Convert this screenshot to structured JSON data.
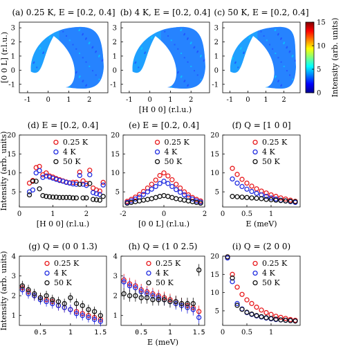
{
  "chart_data": [
    {
      "id": "a",
      "type": "heatmap",
      "title": "(a) 0.25 K, E = [0.2, 0.4]",
      "xlabel": "",
      "ylabel": "[0 0 L] (r.l.u.)",
      "xticks": [
        "-1",
        "0",
        "1",
        "2"
      ],
      "yticks": [
        "3",
        "2",
        "1",
        "0",
        "-1"
      ],
      "xlim": [
        -1.4,
        2.9
      ],
      "ylim": [
        -1.6,
        3.4
      ],
      "hot_level": 1.0
    },
    {
      "id": "b",
      "type": "heatmap",
      "title": "(b) 4 K, E = [0.2, 0.4]",
      "xlabel": "[H 0 0] (r.l.u.)",
      "ylabel": "",
      "xticks": [
        "-1",
        "0",
        "1",
        "2"
      ],
      "yticks": [
        "3",
        "2",
        "1",
        "0",
        "-1"
      ],
      "xlim": [
        -1.4,
        2.9
      ],
      "ylim": [
        -1.6,
        3.4
      ],
      "hot_level": 0.8
    },
    {
      "id": "c",
      "type": "heatmap",
      "title": "(c) 50 K, E = [0.2, 0.4]",
      "xlabel": "",
      "ylabel": "",
      "xticks": [
        "-1",
        "0",
        "1",
        "2"
      ],
      "yticks": [
        "3",
        "2",
        "1",
        "0",
        "-1"
      ],
      "xlim": [
        -1.4,
        2.9
      ],
      "ylim": [
        -1.6,
        3.4
      ],
      "hot_level": 0.35,
      "colorbar": {
        "label": "Intensity (arb. units)",
        "ticks": [
          "15",
          "10",
          "5",
          "0"
        ],
        "range": [
          0,
          15
        ]
      }
    },
    {
      "id": "d",
      "type": "scatter",
      "title": "(d) E = [0.2, 0.4]",
      "xlabel": "[H 0 0] (r.l.u.)",
      "ylabel": "Intensity (arb. units)",
      "xlim": [
        0,
        2.6
      ],
      "ylim": [
        1,
        20
      ],
      "xticks": [
        0,
        1,
        2
      ],
      "yticks": [
        5,
        10,
        15,
        20
      ],
      "xtick_labels": [
        "0",
        "1",
        "2"
      ],
      "ytick_labels": [
        "5",
        "10",
        "15",
        "20"
      ],
      "legend": [
        "0.25 K",
        "4 K",
        "50 K"
      ],
      "series": [
        {
          "name": "0.25 K",
          "color": "#e8191c",
          "x": [
            0.3,
            0.4,
            0.5,
            0.6,
            0.7,
            0.8,
            0.9,
            1.0,
            1.1,
            1.2,
            1.3,
            1.4,
            1.5,
            1.6,
            1.7,
            1.8,
            1.9,
            2.0,
            2.1,
            2.2,
            2.3,
            2.4,
            2.5
          ],
          "y": [
            7.3,
            8.0,
            11.4,
            11.7,
            9.5,
            10.0,
            9.2,
            8.9,
            8.5,
            8.2,
            7.9,
            7.6,
            7.4,
            7.5,
            7.5,
            10.2,
            7.9,
            7.2,
            10.7,
            6.0,
            5.5,
            5.2,
            7.5
          ]
        },
        {
          "name": "4 K",
          "color": "#1f2be0",
          "x": [
            0.3,
            0.4,
            0.5,
            0.6,
            0.7,
            0.8,
            0.9,
            1.0,
            1.1,
            1.2,
            1.3,
            1.4,
            1.5,
            1.6,
            1.7,
            1.8,
            1.9,
            2.0,
            2.1,
            2.2,
            2.3,
            2.4,
            2.5
          ],
          "y": [
            5.0,
            5.5,
            10.0,
            10.6,
            8.8,
            9.2,
            8.9,
            8.6,
            8.3,
            8.0,
            7.8,
            7.5,
            7.3,
            7.1,
            7.0,
            9.3,
            7.0,
            6.7,
            9.5,
            4.8,
            4.5,
            4.3,
            6.8
          ]
        },
        {
          "name": "50 K",
          "color": "#111111",
          "x": [
            0.3,
            0.4,
            0.5,
            0.6,
            0.7,
            0.8,
            0.9,
            1.0,
            1.1,
            1.2,
            1.3,
            1.4,
            1.5,
            1.6,
            1.7,
            1.8,
            1.9,
            2.0,
            2.1,
            2.2,
            2.3,
            2.4,
            2.5
          ],
          "y": [
            4.2,
            7.8,
            7.8,
            5.8,
            4.0,
            3.8,
            3.7,
            3.6,
            3.6,
            3.5,
            3.5,
            3.5,
            3.5,
            3.4,
            3.4,
            7.0,
            3.4,
            3.4,
            7.2,
            3.0,
            2.9,
            2.8,
            3.8
          ]
        }
      ]
    },
    {
      "id": "e",
      "type": "scatter",
      "title": "(e) E = [0.2, 0.4]",
      "xlabel": "[0 0 L] (r.l.u.)",
      "ylabel": "",
      "xlim": [
        -2,
        2
      ],
      "ylim": [
        1,
        20
      ],
      "xticks": [
        -2,
        0,
        2
      ],
      "yticks": [
        5,
        10,
        15,
        20
      ],
      "xtick_labels": [
        "-2",
        "0",
        "2"
      ],
      "ytick_labels": [
        "5",
        "10",
        "15",
        "20"
      ],
      "legend": [
        "0.25 K",
        "4 K",
        "50 K"
      ],
      "series": [
        {
          "name": "0.25 K",
          "color": "#e8191c",
          "x": [
            -1.8,
            -1.6,
            -1.4,
            -1.2,
            -1.0,
            -0.8,
            -0.6,
            -0.4,
            -0.2,
            0,
            0.2,
            0.4,
            0.6,
            0.8,
            1.0,
            1.2,
            1.4,
            1.6,
            1.8
          ],
          "y": [
            2.5,
            3.0,
            3.6,
            4.3,
            5.1,
            6.0,
            7.0,
            8.1,
            9.3,
            10.0,
            9.2,
            8.2,
            7.0,
            6.0,
            5.0,
            4.2,
            3.5,
            3.0,
            2.6
          ]
        },
        {
          "name": "4 K",
          "color": "#1f2be0",
          "x": [
            -1.8,
            -1.6,
            -1.4,
            -1.2,
            -1.0,
            -0.8,
            -0.6,
            -0.4,
            -0.2,
            0,
            0.2,
            0.4,
            0.6,
            0.8,
            1.0,
            1.2,
            1.4,
            1.6,
            1.8
          ],
          "y": [
            2.2,
            2.6,
            3.1,
            3.6,
            4.3,
            5.0,
            5.7,
            6.4,
            7.2,
            7.8,
            7.2,
            6.4,
            5.6,
            4.9,
            4.2,
            3.6,
            3.1,
            2.6,
            2.3
          ]
        },
        {
          "name": "50 K",
          "color": "#111111",
          "x": [
            -1.8,
            -1.6,
            -1.4,
            -1.2,
            -1.0,
            -0.8,
            -0.6,
            -0.4,
            -0.2,
            0,
            0.2,
            0.4,
            0.6,
            0.8,
            1.0,
            1.2,
            1.4,
            1.6,
            1.8
          ],
          "y": [
            2.0,
            2.2,
            2.4,
            2.6,
            2.8,
            3.0,
            3.2,
            3.5,
            3.8,
            4.0,
            3.8,
            3.5,
            3.2,
            3.0,
            2.8,
            2.6,
            2.4,
            2.2,
            2.0
          ]
        }
      ]
    },
    {
      "id": "f",
      "type": "scatter",
      "title": "(f) Q = [1 0 0]",
      "xlabel": "E (meV)",
      "ylabel": "",
      "xlim": [
        0,
        1.6
      ],
      "ylim": [
        1,
        20
      ],
      "xticks": [
        0,
        0.5,
        1
      ],
      "yticks": [
        5,
        10,
        15,
        20
      ],
      "xtick_labels": [
        "0",
        "0.5",
        "1"
      ],
      "ytick_labels": [
        "5",
        "10",
        "15",
        "20"
      ],
      "legend": [
        "0.25 K",
        "4 K",
        "50 K"
      ],
      "series": [
        {
          "name": "0.25 K",
          "color": "#e8191c",
          "x": [
            0.2,
            0.3,
            0.4,
            0.5,
            0.6,
            0.7,
            0.8,
            0.9,
            1.0,
            1.1,
            1.2,
            1.3,
            1.4,
            1.5
          ],
          "y": [
            11.2,
            9.6,
            8.3,
            7.3,
            6.5,
            5.8,
            5.2,
            4.7,
            4.2,
            3.8,
            3.4,
            3.1,
            2.8,
            2.5
          ]
        },
        {
          "name": "4 K",
          "color": "#1f2be0",
          "x": [
            0.2,
            0.3,
            0.4,
            0.5,
            0.6,
            0.7,
            0.8,
            0.9,
            1.0,
            1.1,
            1.2,
            1.3,
            1.4,
            1.5
          ],
          "y": [
            8.4,
            7.3,
            6.4,
            5.7,
            5.1,
            4.6,
            4.2,
            3.8,
            3.4,
            3.1,
            2.8,
            2.6,
            2.4,
            2.2
          ]
        },
        {
          "name": "50 K",
          "color": "#111111",
          "x": [
            0.2,
            0.3,
            0.4,
            0.5,
            0.6,
            0.7,
            0.8,
            0.9,
            1.0,
            1.1,
            1.2,
            1.3,
            1.4,
            1.5
          ],
          "y": [
            3.8,
            3.7,
            3.6,
            3.5,
            3.4,
            3.3,
            3.2,
            3.0,
            2.9,
            2.8,
            2.7,
            2.6,
            2.5,
            2.4
          ]
        }
      ]
    },
    {
      "id": "g",
      "type": "scatter",
      "title": "(g) Q = (0 0 1.3)",
      "xlabel": "",
      "ylabel": "Intensity (arb. units)",
      "xlim": [
        0.15,
        1.6
      ],
      "ylim": [
        0.5,
        4
      ],
      "xticks": [
        0.5,
        1,
        1.5
      ],
      "yticks": [
        1,
        2,
        3,
        4
      ],
      "xtick_labels": [
        "0.5",
        "1",
        "1.5"
      ],
      "ytick_labels": [
        "1",
        "2",
        "3",
        "4"
      ],
      "legend": [
        "0.25 K",
        "4 K",
        "50 K"
      ],
      "series": [
        {
          "name": "0.25 K",
          "color": "#e8191c",
          "x": [
            0.2,
            0.3,
            0.4,
            0.5,
            0.6,
            0.7,
            0.8,
            0.9,
            1.0,
            1.1,
            1.2,
            1.3,
            1.4,
            1.5
          ],
          "y": [
            2.4,
            2.2,
            2.0,
            1.9,
            1.8,
            1.7,
            1.5,
            1.4,
            1.3,
            1.2,
            1.1,
            1.0,
            0.9,
            0.8
          ]
        },
        {
          "name": "4 K",
          "color": "#1f2be0",
          "x": [
            0.2,
            0.3,
            0.4,
            0.5,
            0.6,
            0.7,
            0.8,
            0.9,
            1.0,
            1.1,
            1.2,
            1.3,
            1.4,
            1.5
          ],
          "y": [
            2.3,
            2.1,
            2.0,
            1.8,
            1.7,
            1.6,
            1.5,
            1.4,
            1.3,
            1.1,
            1.0,
            0.9,
            0.8,
            0.7
          ]
        },
        {
          "name": "50 K",
          "color": "#111111",
          "x": [
            0.2,
            0.3,
            0.4,
            0.5,
            0.6,
            0.7,
            0.8,
            0.9,
            1.0,
            1.1,
            1.2,
            1.3,
            1.4,
            1.5
          ],
          "y": [
            2.5,
            2.3,
            2.1,
            1.9,
            2.0,
            1.8,
            1.7,
            1.6,
            1.9,
            1.6,
            1.5,
            1.3,
            1.2,
            1.0
          ]
        }
      ]
    },
    {
      "id": "h",
      "type": "scatter",
      "title": "(h) Q = (1 0 2.5)",
      "xlabel": "E (meV)",
      "ylabel": "",
      "xlim": [
        0.15,
        1.6
      ],
      "ylim": [
        0.5,
        4
      ],
      "xticks": [
        0.5,
        1,
        1.5
      ],
      "yticks": [
        1,
        2,
        3,
        4
      ],
      "xtick_labels": [
        "0.5",
        "1",
        "1.5"
      ],
      "ytick_labels": [
        "1",
        "2",
        "3",
        "4"
      ],
      "legend": [
        "0.25 K",
        "4 K",
        "50 K"
      ],
      "series": [
        {
          "name": "0.25 K",
          "color": "#e8191c",
          "x": [
            0.2,
            0.3,
            0.4,
            0.5,
            0.6,
            0.7,
            0.8,
            0.9,
            1.0,
            1.1,
            1.2,
            1.3,
            1.4,
            1.5
          ],
          "y": [
            2.8,
            2.6,
            2.5,
            2.3,
            2.2,
            2.1,
            2.0,
            1.9,
            1.8,
            1.7,
            1.6,
            1.5,
            1.4,
            1.2
          ]
        },
        {
          "name": "4 K",
          "color": "#1f2be0",
          "x": [
            0.2,
            0.3,
            0.4,
            0.5,
            0.6,
            0.7,
            0.8,
            0.9,
            1.0,
            1.1,
            1.2,
            1.3,
            1.4,
            1.5
          ],
          "y": [
            2.7,
            2.5,
            2.4,
            2.2,
            2.1,
            2.0,
            1.9,
            1.8,
            1.7,
            1.6,
            1.5,
            1.4,
            1.3,
            0.9
          ]
        },
        {
          "name": "50 K",
          "color": "#111111",
          "x": [
            0.2,
            0.3,
            0.4,
            0.5,
            0.6,
            0.7,
            0.8,
            0.9,
            1.0,
            1.1,
            1.2,
            1.3,
            1.4,
            1.5
          ],
          "y": [
            2.1,
            2.0,
            2.0,
            1.9,
            1.9,
            1.8,
            1.8,
            1.8,
            1.7,
            1.7,
            1.6,
            1.6,
            1.6,
            3.3
          ]
        }
      ]
    },
    {
      "id": "i",
      "type": "scatter",
      "title": "(i) Q = (2 0 0)",
      "xlabel": "",
      "ylabel": "",
      "xlim": [
        0,
        1.6
      ],
      "ylim": [
        1,
        20
      ],
      "xticks": [
        0,
        0.5,
        1
      ],
      "yticks": [
        5,
        10,
        15,
        20
      ],
      "xtick_labels": [
        "0",
        "0.5",
        "1"
      ],
      "ytick_labels": [
        "5",
        "10",
        "15",
        "20"
      ],
      "legend": [
        "0.25 K",
        "4 K",
        "50 K"
      ],
      "series": [
        {
          "name": "0.25 K",
          "color": "#e8191c",
          "x": [
            0.1,
            0.2,
            0.3,
            0.4,
            0.5,
            0.6,
            0.7,
            0.8,
            0.9,
            1.0,
            1.1,
            1.2,
            1.3,
            1.4,
            1.5
          ],
          "y": [
            19.8,
            15.0,
            11.5,
            9.5,
            8.0,
            7.0,
            6.0,
            5.2,
            4.5,
            4.0,
            3.5,
            3.2,
            2.9,
            2.6,
            2.4
          ]
        },
        {
          "name": "4 K",
          "color": "#1f2be0",
          "x": [
            0.1,
            0.2,
            0.3,
            0.4,
            0.5,
            0.6,
            0.7,
            0.8,
            0.9,
            1.0,
            1.1,
            1.2,
            1.3,
            1.4,
            1.5
          ],
          "y": [
            19.5,
            13.0,
            7.0,
            5.5,
            4.5,
            4.0,
            3.6,
            3.3,
            3.0,
            2.8,
            2.6,
            2.5,
            2.4,
            2.3,
            2.2
          ]
        },
        {
          "name": "50 K",
          "color": "#111111",
          "x": [
            0.1,
            0.2,
            0.3,
            0.4,
            0.5,
            0.6,
            0.7,
            0.8,
            0.9,
            1.0,
            1.1,
            1.2,
            1.3,
            1.4,
            1.5
          ],
          "y": [
            19.8,
            14.0,
            6.5,
            5.4,
            4.6,
            4.1,
            3.7,
            3.4,
            3.1,
            2.9,
            2.7,
            2.5,
            2.4,
            2.3,
            2.2
          ]
        }
      ]
    }
  ]
}
